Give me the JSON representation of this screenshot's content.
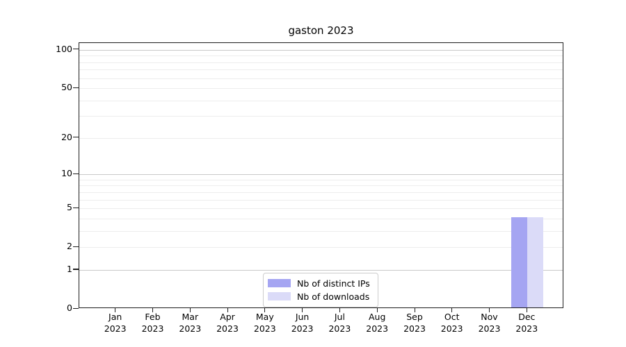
{
  "figure": {
    "background": "#ffffff"
  },
  "chart_data": {
    "type": "bar",
    "title": "gaston 2023",
    "x": {
      "months": [
        "Jan",
        "Feb",
        "Mar",
        "Apr",
        "May",
        "Jun",
        "Jul",
        "Aug",
        "Sep",
        "Oct",
        "Nov",
        "Dec"
      ],
      "year": "2023"
    },
    "series": [
      {
        "name": "Nb of distinct IPs",
        "color": "#a5a5f2",
        "values": [
          0,
          0,
          0,
          0,
          0,
          0,
          0,
          0,
          0,
          0,
          0,
          4
        ]
      },
      {
        "name": "Nb of downloads",
        "color": "#dbdbf8",
        "values": [
          0,
          0,
          0,
          0,
          0,
          0,
          0,
          0,
          0,
          0,
          0,
          4
        ]
      }
    ],
    "y_axis": {
      "scale": "log1p",
      "tick_values": [
        0,
        1,
        2,
        5,
        10,
        20,
        50,
        100
      ],
      "tick_labels": [
        "0",
        "1",
        "2",
        "5",
        "10",
        "20",
        "50",
        "100"
      ],
      "major_gridline_values": [
        1,
        10,
        100
      ],
      "minor_gridline_values": [
        2,
        3,
        4,
        5,
        6,
        7,
        8,
        9,
        20,
        30,
        40,
        50,
        60,
        70,
        80,
        90
      ],
      "ylim": [
        0,
        113
      ]
    },
    "legend": {
      "position": "lower center",
      "entries": [
        "Nb of distinct IPs",
        "Nb of downloads"
      ]
    },
    "grid": true
  },
  "colors": {
    "axis": "#1c1c1c",
    "text": "#000000",
    "major_grid": "#c9c9c9",
    "minor_grid": "#ededed",
    "legend_border": "#cccccc",
    "background": "#ffffff"
  }
}
